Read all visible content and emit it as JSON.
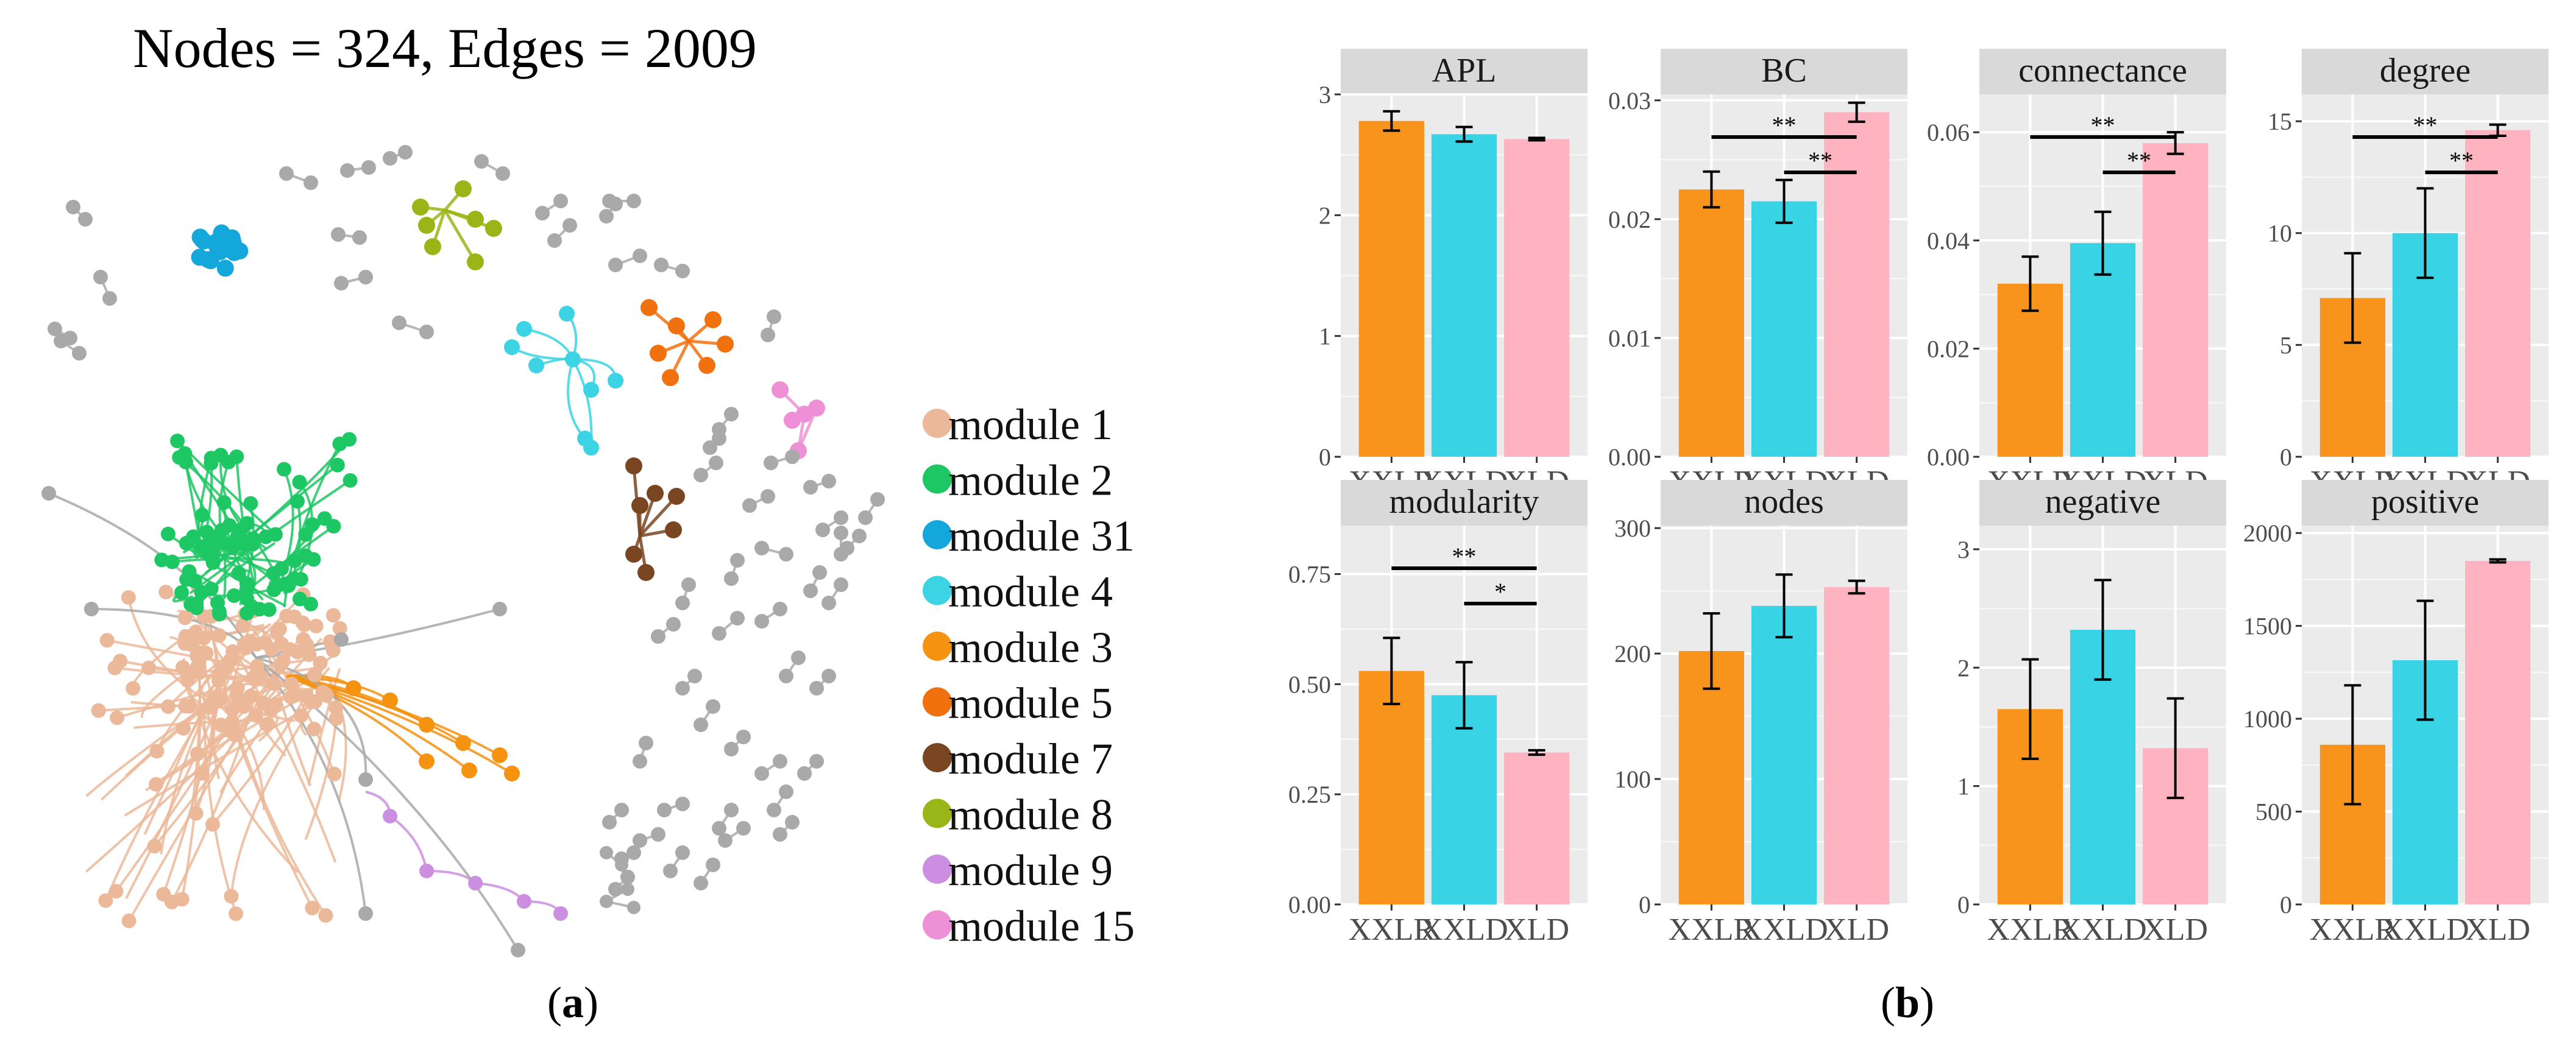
{
  "panel_a": {
    "title": "Nodes = 324, Edges = 2009",
    "caption_letter": "a",
    "legend": [
      {
        "label": "module 1",
        "color": "#EBB999"
      },
      {
        "label": "module 2",
        "color": "#1DC764"
      },
      {
        "label": "module 31",
        "color": "#14A7DB"
      },
      {
        "label": "module 4",
        "color": "#3CD3E5"
      },
      {
        "label": "module 3",
        "color": "#F5920F"
      },
      {
        "label": "module 5",
        "color": "#F2710F"
      },
      {
        "label": "module 7",
        "color": "#7A4521"
      },
      {
        "label": "module 8",
        "color": "#9AB517"
      },
      {
        "label": "module 9",
        "color": "#CC8EE0"
      },
      {
        "label": "module 15",
        "color": "#EE90D6"
      }
    ],
    "other_color": "#A9A9A9"
  },
  "panel_b": {
    "caption_letter": "b"
  },
  "chart_data": [
    {
      "type": "bar",
      "title": "APL",
      "categories": [
        "XXLR",
        "XXLD",
        "XLD"
      ],
      "values": [
        2.78,
        2.67,
        2.63
      ],
      "error": [
        0.08,
        0.06,
        0.01
      ],
      "ylim": [
        0,
        3.0
      ],
      "yticks": [
        0,
        1,
        2,
        3
      ],
      "ytick_labels": [
        "0",
        "1",
        "2",
        "3"
      ],
      "colors": [
        "#F8931C",
        "#38D3E4",
        "#FFB2BF"
      ],
      "significance": []
    },
    {
      "type": "bar",
      "title": "BC",
      "categories": [
        "XXLR",
        "XXLD",
        "XLD"
      ],
      "values": [
        0.0225,
        0.0215,
        0.029
      ],
      "error": [
        0.0015,
        0.0018,
        0.0008
      ],
      "ylim": [
        0,
        0.0305
      ],
      "yticks": [
        0,
        0.01,
        0.02,
        0.03
      ],
      "ytick_labels": [
        "0.00",
        "0.01",
        "0.02",
        "0.03"
      ],
      "colors": [
        "#F8931C",
        "#38D3E4",
        "#FFB2BF"
      ],
      "significance": [
        {
          "from": 0,
          "to": 2,
          "label": "**",
          "level": 2
        },
        {
          "from": 1,
          "to": 2,
          "label": "**",
          "level": 1
        }
      ]
    },
    {
      "type": "bar",
      "title": "connectance",
      "categories": [
        "XXLR",
        "XXLD",
        "XLD"
      ],
      "values": [
        0.032,
        0.0395,
        0.058
      ],
      "error": [
        0.005,
        0.0058,
        0.002
      ],
      "ylim": [
        0,
        0.067
      ],
      "yticks": [
        0,
        0.02,
        0.04,
        0.06
      ],
      "ytick_labels": [
        "0.00",
        "0.02",
        "0.04",
        "0.06"
      ],
      "colors": [
        "#F8931C",
        "#38D3E4",
        "#FFB2BF"
      ],
      "significance": [
        {
          "from": 0,
          "to": 2,
          "label": "**",
          "level": 2
        },
        {
          "from": 1,
          "to": 2,
          "label": "**",
          "level": 1
        }
      ]
    },
    {
      "type": "bar",
      "title": "degree",
      "categories": [
        "XXLR",
        "XXLD",
        "XLD"
      ],
      "values": [
        7.1,
        10.0,
        14.6
      ],
      "error": [
        2.0,
        2.0,
        0.25
      ],
      "ylim": [
        0,
        16.2
      ],
      "yticks": [
        0,
        5,
        10,
        15
      ],
      "ytick_labels": [
        "0",
        "5",
        "10",
        "15"
      ],
      "colors": [
        "#F8931C",
        "#38D3E4",
        "#FFB2BF"
      ],
      "significance": [
        {
          "from": 0,
          "to": 2,
          "label": "**",
          "level": 2
        },
        {
          "from": 1,
          "to": 2,
          "label": "**",
          "level": 1
        }
      ]
    },
    {
      "type": "bar",
      "title": "modularity",
      "categories": [
        "XXLR",
        "XXLD",
        "XLD"
      ],
      "values": [
        0.53,
        0.475,
        0.345
      ],
      "error": [
        0.075,
        0.075,
        0.005
      ],
      "ylim": [
        0,
        0.86
      ],
      "yticks": [
        0,
        0.25,
        0.5,
        0.75
      ],
      "ytick_labels": [
        "0.00",
        "0.25",
        "0.50",
        "0.75"
      ],
      "colors": [
        "#F8931C",
        "#38D3E4",
        "#FFB2BF"
      ],
      "significance": [
        {
          "from": 0,
          "to": 2,
          "label": "**",
          "level": 2
        },
        {
          "from": 1,
          "to": 2,
          "label": "*",
          "level": 1
        }
      ]
    },
    {
      "type": "bar",
      "title": "nodes",
      "categories": [
        "XXLR",
        "XXLD",
        "XLD"
      ],
      "values": [
        202,
        238,
        253
      ],
      "error": [
        30,
        25,
        5
      ],
      "ylim": [
        0,
        302
      ],
      "yticks": [
        0,
        100,
        200,
        300
      ],
      "ytick_labels": [
        "0",
        "100",
        "200",
        "300"
      ],
      "colors": [
        "#F8931C",
        "#38D3E4",
        "#FFB2BF"
      ],
      "significance": []
    },
    {
      "type": "bar",
      "title": "negative",
      "categories": [
        "XXLR",
        "XXLD",
        "XLD"
      ],
      "values": [
        1.65,
        2.32,
        1.32
      ],
      "error": [
        0.42,
        0.42,
        0.42
      ],
      "ylim": [
        0,
        3.2
      ],
      "yticks": [
        0,
        1,
        2,
        3
      ],
      "ytick_labels": [
        "0",
        "1",
        "2",
        "3"
      ],
      "colors": [
        "#F8931C",
        "#38D3E4",
        "#FFB2BF"
      ],
      "significance": []
    },
    {
      "type": "bar",
      "title": "positive",
      "categories": [
        "XXLR",
        "XXLD",
        "XLD"
      ],
      "values": [
        860,
        1315,
        1850
      ],
      "error": [
        320,
        320,
        8
      ],
      "ylim": [
        0,
        2040
      ],
      "yticks": [
        0,
        500,
        1000,
        1500,
        2000
      ],
      "ytick_labels": [
        "0",
        "500",
        "1000",
        "1500",
        "2000"
      ],
      "colors": [
        "#F8931C",
        "#38D3E4",
        "#FFB2BF"
      ],
      "significance": []
    }
  ]
}
